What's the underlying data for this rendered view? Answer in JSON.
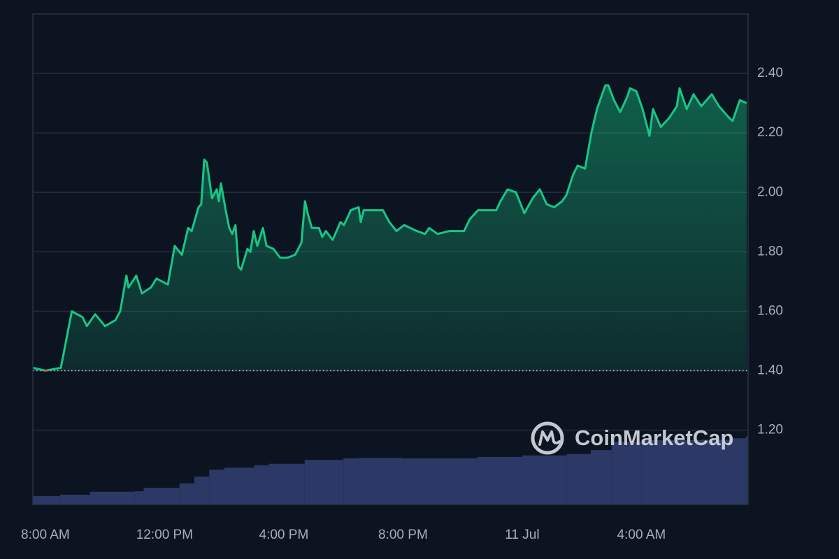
{
  "chart_data": {
    "type": "line",
    "watermark": "CoinMarketCap",
    "xlim": [
      -0.42,
      23.58
    ],
    "xticks": [
      {
        "value": 0,
        "label": "8:00 AM"
      },
      {
        "value": 4,
        "label": "12:00 PM"
      },
      {
        "value": 8,
        "label": "4:00 PM"
      },
      {
        "value": 12,
        "label": "8:00 PM"
      },
      {
        "value": 16,
        "label": "11 Jul"
      },
      {
        "value": 20,
        "label": "4:00 AM"
      }
    ],
    "ylim": [
      0.95,
      2.6
    ],
    "yticks": [
      {
        "value": 1.2,
        "label": "1.20"
      },
      {
        "value": 1.4,
        "label": "1.40"
      },
      {
        "value": 1.6,
        "label": "1.60"
      },
      {
        "value": 1.8,
        "label": "1.80"
      },
      {
        "value": 2.0,
        "label": "2.00"
      },
      {
        "value": 2.2,
        "label": "2.20"
      },
      {
        "value": 2.4,
        "label": "2.40"
      }
    ],
    "grid": true,
    "baseline": 1.4,
    "up_color": "#16c784",
    "down_color": "#ea3943",
    "x": [
      -0.42,
      0.0,
      0.52,
      0.75,
      0.89,
      1.25,
      1.39,
      1.67,
      2.0,
      2.35,
      2.51,
      2.72,
      2.79,
      3.05,
      3.24,
      3.54,
      3.73,
      4.11,
      4.34,
      4.58,
      4.79,
      4.91,
      5.14,
      5.23,
      5.33,
      5.42,
      5.59,
      5.75,
      5.82,
      5.89,
      6.05,
      6.17,
      6.27,
      6.38,
      6.48,
      6.57,
      6.78,
      6.88,
      6.99,
      7.11,
      7.3,
      7.42,
      7.65,
      7.88,
      8.12,
      8.38,
      8.59,
      8.71,
      8.8,
      8.94,
      9.18,
      9.29,
      9.41,
      9.64,
      9.9,
      10.02,
      10.25,
      10.51,
      10.58,
      10.68,
      11.03,
      11.33,
      11.54,
      11.78,
      12.04,
      12.46,
      12.74,
      12.88,
      13.16,
      13.56,
      14.05,
      14.24,
      14.52,
      14.83,
      15.13,
      15.27,
      15.51,
      15.79,
      16.07,
      16.35,
      16.59,
      16.82,
      17.08,
      17.34,
      17.48,
      17.71,
      17.86,
      18.11,
      18.32,
      18.51,
      18.79,
      18.89,
      19.08,
      19.29,
      19.52,
      19.62,
      19.83,
      20.04,
      20.27,
      20.39,
      20.65,
      20.93,
      21.19,
      21.28,
      21.52,
      21.75,
      22.01,
      22.36,
      22.6,
      22.95,
      23.06,
      23.3,
      23.53
    ],
    "series": [
      {
        "values": [
          1.41,
          1.4,
          1.41,
          1.53,
          1.6,
          1.58,
          1.55,
          1.59,
          1.55,
          1.57,
          1.6,
          1.72,
          1.68,
          1.72,
          1.66,
          1.68,
          1.71,
          1.69,
          1.82,
          1.79,
          1.88,
          1.87,
          1.95,
          1.96,
          2.11,
          2.1,
          1.98,
          2.01,
          1.97,
          2.03,
          1.94,
          1.88,
          1.86,
          1.89,
          1.75,
          1.74,
          1.81,
          1.8,
          1.87,
          1.82,
          1.88,
          1.82,
          1.81,
          1.78,
          1.78,
          1.79,
          1.83,
          1.97,
          1.93,
          1.88,
          1.88,
          1.85,
          1.87,
          1.84,
          1.9,
          1.89,
          1.94,
          1.95,
          1.9,
          1.94,
          1.94,
          1.94,
          1.9,
          1.87,
          1.89,
          1.87,
          1.86,
          1.88,
          1.86,
          1.87,
          1.87,
          1.91,
          1.94,
          1.94,
          1.94,
          1.97,
          2.01,
          2.0,
          1.93,
          1.98,
          2.01,
          1.96,
          1.95,
          1.97,
          1.99,
          2.06,
          2.09,
          2.08,
          2.2,
          2.28,
          2.36,
          2.36,
          2.31,
          2.27,
          2.32,
          2.35,
          2.34,
          2.28,
          2.19,
          2.28,
          2.22,
          2.25,
          2.29,
          2.35,
          2.28,
          2.33,
          2.29,
          2.33,
          2.29,
          2.25,
          2.24,
          2.31,
          2.3
        ]
      }
    ],
    "volume": {
      "color": "#2c3866",
      "y2lim": [
        0,
        100
      ],
      "x": [
        -0.42,
        0.5,
        1.5,
        3.0,
        3.3,
        4.5,
        5.0,
        5.5,
        6.0,
        7.0,
        7.5,
        8.7,
        10.0,
        10.5,
        12.0,
        14.5,
        16.0,
        17.5,
        18.3,
        19.0,
        20.0,
        22.0,
        23.0,
        23.5
      ],
      "values": [
        1.7,
        2.0,
        2.6,
        2.7,
        3.4,
        4.3,
        5.7,
        7.1,
        7.5,
        8.0,
        8.3,
        9.1,
        9.4,
        9.5,
        9.4,
        9.7,
        10.0,
        10.3,
        11.1,
        12.8,
        13.1,
        13.2,
        13.5,
        13.8
      ]
    }
  }
}
